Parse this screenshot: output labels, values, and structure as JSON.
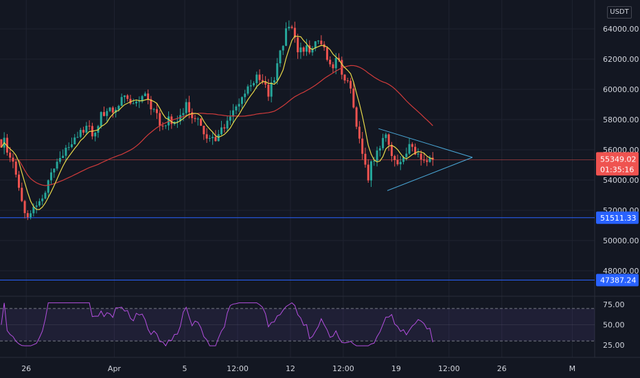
{
  "currency_label": "USDT",
  "chart_data": {
    "type": "candlestick",
    "symbol_quote": "USDT",
    "price_axis": {
      "ticks": [
        "64000.00",
        "62000.00",
        "60000.00",
        "58000.00",
        "56000.00",
        "54000.00",
        "52000.00",
        "50000.00",
        "48000.00"
      ],
      "tick_values": [
        64000,
        62000,
        60000,
        58000,
        56000,
        54000,
        52000,
        50000,
        48000
      ]
    },
    "time_axis": {
      "labels": [
        {
          "text": "26",
          "slot": 4
        },
        {
          "text": "Apr",
          "slot": 19
        },
        {
          "text": "5",
          "slot": 31
        },
        {
          "text": "12:00",
          "slot": 40
        },
        {
          "text": "12",
          "slot": 49
        },
        {
          "text": "12:00",
          "slot": 58
        },
        {
          "text": "19",
          "slot": 67
        },
        {
          "text": "12:00",
          "slot": 76
        },
        {
          "text": "26",
          "slot": 85
        },
        {
          "text": "M",
          "slot": 97
        }
      ]
    },
    "current_price": {
      "value": "55349.02",
      "countdown": "01:35:16",
      "level": 55349.02
    },
    "horizontal_levels": [
      {
        "label": "51511.33",
        "value": 51511.33
      },
      {
        "label": "47387.24",
        "value": 47387.24
      }
    ],
    "candles_close_estimate": [
      56500,
      55600,
      54400,
      52500,
      51600,
      51900,
      52800,
      53300,
      54700,
      55500,
      55600,
      56400,
      56900,
      57300,
      57600,
      57000,
      57900,
      58400,
      59000,
      58600,
      59300,
      59300,
      58800,
      59500,
      59600,
      58900,
      58200,
      57500,
      58000,
      57600,
      58500,
      58900,
      58100,
      57900,
      57100,
      56600,
      56900,
      57400,
      58100,
      58600,
      59300,
      59900,
      60400,
      60700,
      60200,
      59800,
      60700,
      62300,
      63700,
      64100,
      62500,
      62700,
      62700,
      62900,
      63000,
      62100,
      61600,
      62200,
      60400,
      60200,
      57600,
      55400,
      54300,
      55600,
      56400,
      57200,
      55500,
      54900,
      55400,
      56100,
      55900,
      55500,
      55400,
      55349
    ],
    "moving_averages": [
      {
        "color": "#e8d94a",
        "kind": "short"
      },
      {
        "color": "#d23b3b",
        "kind": "long"
      }
    ],
    "triangle_pattern": {
      "upper_start": 57400,
      "apex": 55500,
      "lower_start": 53300
    },
    "rsi": {
      "ticks": [
        "75.00",
        "50.00",
        "25.00"
      ],
      "upper_band": 70,
      "lower_band": 30,
      "range": [
        20,
        80
      ]
    }
  }
}
